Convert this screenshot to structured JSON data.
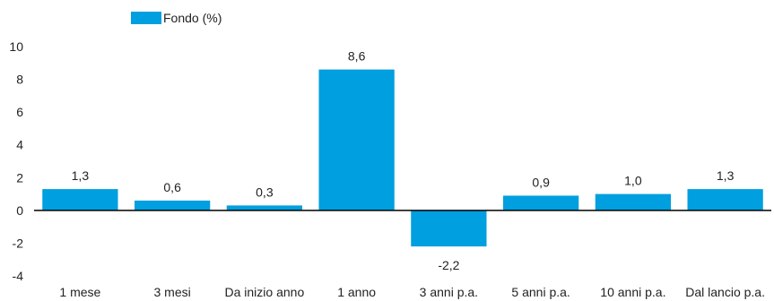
{
  "chart_data": {
    "type": "bar",
    "categories": [
      "1 mese",
      "3 mesi",
      "Da inizio anno",
      "1 anno",
      "3 anni p.a.",
      "5 anni p.a.",
      "10 anni p.a.",
      "Dal lancio p.a."
    ],
    "series": [
      {
        "name": "Fondo (%)",
        "values": [
          1.3,
          0.6,
          0.3,
          8.6,
          -2.2,
          0.9,
          1.0,
          1.3
        ],
        "labels": [
          "1,3",
          "0,6",
          "0,3",
          "8,6",
          "-2,2",
          "0,9",
          "1,0",
          "1,3"
        ],
        "color": "#009fdf"
      }
    ],
    "ylim": [
      -4,
      10
    ],
    "yticks": [
      -4,
      -2,
      0,
      2,
      4,
      6,
      8,
      10
    ],
    "ytick_labels": [
      "-4",
      "-2",
      "0",
      "2",
      "4",
      "6",
      "8",
      "10"
    ],
    "grid": false,
    "legend_position": "top-left"
  }
}
